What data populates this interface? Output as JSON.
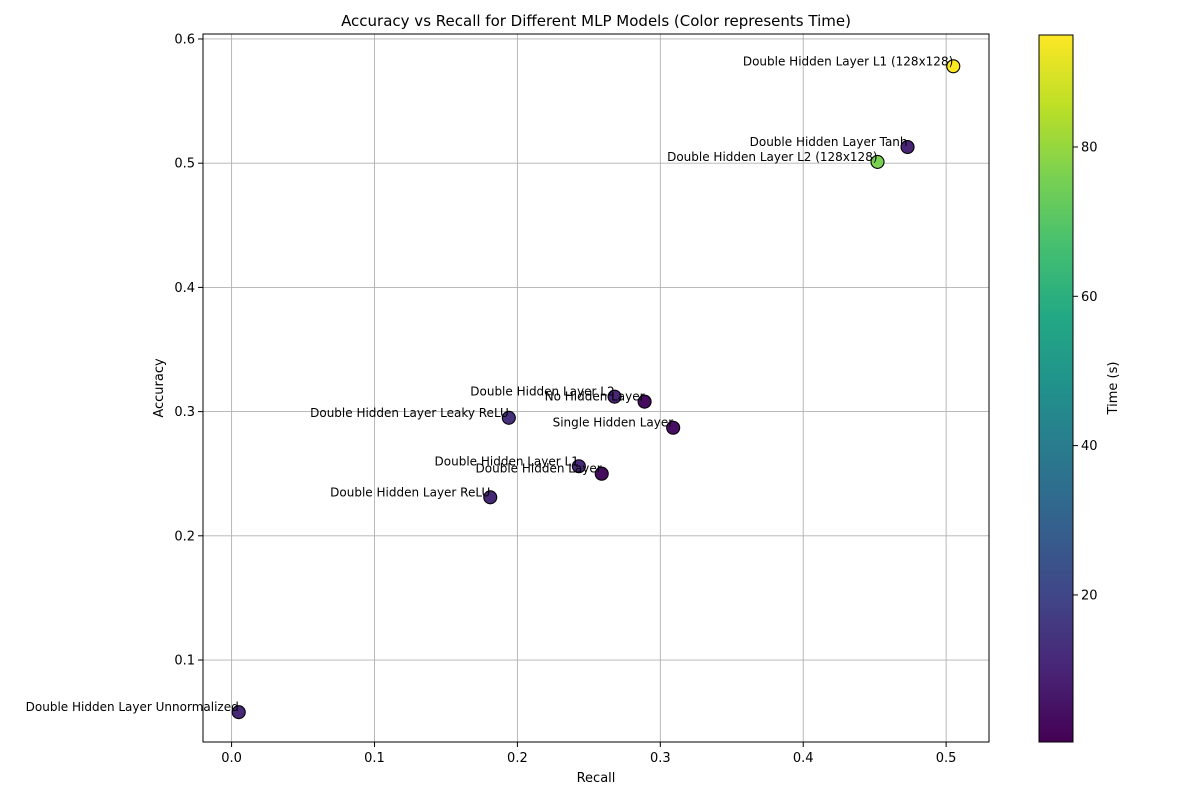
{
  "chart_data": {
    "type": "scatter",
    "title": "Accuracy vs Recall for Different MLP Models (Color represents Time)",
    "xlabel": "Recall",
    "ylabel": "Accuracy",
    "xlim": [
      -0.02,
      0.53
    ],
    "ylim": [
      0.034,
      0.604
    ],
    "xticks": [
      0.0,
      0.1,
      0.2,
      0.3,
      0.4,
      0.5
    ],
    "xtick_labels": [
      "0.0",
      "0.1",
      "0.2",
      "0.3",
      "0.4",
      "0.5"
    ],
    "yticks": [
      0.1,
      0.2,
      0.3,
      0.4,
      0.5,
      0.6
    ],
    "ytick_labels": [
      "0.1",
      "0.2",
      "0.3",
      "0.4",
      "0.5",
      "0.6"
    ],
    "grid": true,
    "colorbar": {
      "label": "Time (s)",
      "range": [
        0.3,
        95
      ],
      "ticks": [
        20,
        40,
        60,
        80
      ],
      "tick_labels": [
        "20",
        "40",
        "60",
        "80"
      ],
      "colormap": "viridis"
    },
    "points": [
      {
        "label": "Double Hidden Layer L1 (128x128)",
        "recall": 0.505,
        "accuracy": 0.578,
        "time": 95
      },
      {
        "label": "Double Hidden Layer Tanh",
        "recall": 0.473,
        "accuracy": 0.513,
        "time": 10
      },
      {
        "label": "Double Hidden Layer L2 (128x128)",
        "recall": 0.452,
        "accuracy": 0.501,
        "time": 76
      },
      {
        "label": "Double Hidden Layer L2",
        "recall": 0.268,
        "accuracy": 0.312,
        "time": 10
      },
      {
        "label": "No Hidden Layer",
        "recall": 0.289,
        "accuracy": 0.308,
        "time": 3
      },
      {
        "label": "Double Hidden Layer Leaky ReLU",
        "recall": 0.194,
        "accuracy": 0.295,
        "time": 13
      },
      {
        "label": "Single Hidden Layer",
        "recall": 0.309,
        "accuracy": 0.287,
        "time": 4
      },
      {
        "label": "Double Hidden Layer L1",
        "recall": 0.243,
        "accuracy": 0.256,
        "time": 11
      },
      {
        "label": "Double Hidden Layer",
        "recall": 0.259,
        "accuracy": 0.25,
        "time": 3
      },
      {
        "label": "Double Hidden Layer ReLU",
        "recall": 0.181,
        "accuracy": 0.231,
        "time": 11
      },
      {
        "label": "Double Hidden Layer Unnormalized",
        "recall": 0.005,
        "accuracy": 0.058,
        "time": 11
      }
    ]
  }
}
